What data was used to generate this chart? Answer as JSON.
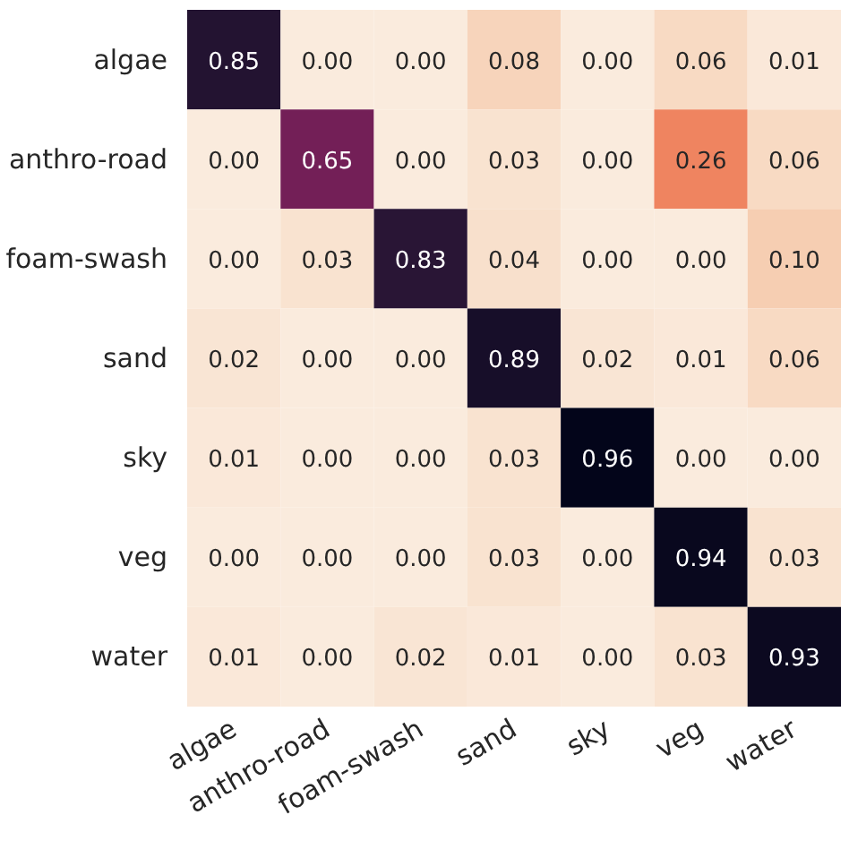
{
  "chart_data": {
    "type": "heatmap",
    "categories": [
      "algae",
      "anthro-road",
      "foam-swash",
      "sand",
      "sky",
      "veg",
      "water"
    ],
    "y_categories": [
      "algae",
      "anthro-road",
      "foam-swash",
      "sand",
      "sky",
      "veg",
      "water"
    ],
    "cells": [
      [
        0.85,
        0.0,
        0.0,
        0.08,
        0.0,
        0.06,
        0.01
      ],
      [
        0.0,
        0.65,
        0.0,
        0.03,
        0.0,
        0.26,
        0.06
      ],
      [
        0.0,
        0.03,
        0.83,
        0.04,
        0.0,
        0.0,
        0.1
      ],
      [
        0.02,
        0.0,
        0.0,
        0.89,
        0.02,
        0.01,
        0.06
      ],
      [
        0.01,
        0.0,
        0.0,
        0.03,
        0.96,
        0.0,
        0.0
      ],
      [
        0.0,
        0.0,
        0.0,
        0.03,
        0.0,
        0.94,
        0.03
      ],
      [
        0.01,
        0.0,
        0.02,
        0.01,
        0.0,
        0.03,
        0.93
      ]
    ],
    "cell_labels": [
      [
        "0.85",
        "0.00",
        "0.00",
        "0.08",
        "0.00",
        "0.06",
        "0.01"
      ],
      [
        "0.00",
        "0.65",
        "0.00",
        "0.03",
        "0.00",
        "0.26",
        "0.06"
      ],
      [
        "0.00",
        "0.03",
        "0.83",
        "0.04",
        "0.00",
        "0.00",
        "0.10"
      ],
      [
        "0.02",
        "0.00",
        "0.00",
        "0.89",
        "0.02",
        "0.01",
        "0.06"
      ],
      [
        "0.01",
        "0.00",
        "0.00",
        "0.03",
        "0.96",
        "0.00",
        "0.00"
      ],
      [
        "0.00",
        "0.00",
        "0.00",
        "0.03",
        "0.00",
        "0.94",
        "0.03"
      ],
      [
        "0.01",
        "0.00",
        "0.02",
        "0.01",
        "0.00",
        "0.03",
        "0.93"
      ]
    ]
  }
}
